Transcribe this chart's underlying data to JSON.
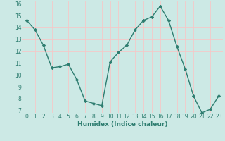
{
  "x": [
    0,
    1,
    2,
    3,
    4,
    5,
    6,
    7,
    8,
    9,
    10,
    11,
    12,
    13,
    14,
    15,
    16,
    17,
    18,
    19,
    20,
    21,
    22,
    23
  ],
  "y": [
    14.6,
    13.8,
    12.5,
    10.6,
    10.7,
    10.9,
    9.6,
    7.8,
    7.6,
    7.4,
    11.1,
    11.9,
    12.5,
    13.8,
    14.6,
    14.9,
    15.8,
    14.6,
    12.4,
    10.5,
    8.2,
    6.8,
    7.1,
    8.2
  ],
  "line_color": "#2e7d70",
  "marker": "D",
  "markersize": 2.2,
  "linewidth": 1.0,
  "bg_color": "#cce9e5",
  "grid_color": "#f5c8c8",
  "xlabel": "Humidex (Indice chaleur)",
  "xlabel_color": "#2e7d70",
  "xlabel_fontsize": 6.5,
  "tick_color": "#2e7d70",
  "tick_fontsize": 5.5,
  "ylim": [
    6.8,
    16.2
  ],
  "xlim": [
    -0.5,
    23.5
  ],
  "yticks": [
    7,
    8,
    9,
    10,
    11,
    12,
    13,
    14,
    15,
    16
  ],
  "xticks": [
    0,
    1,
    2,
    3,
    4,
    5,
    6,
    7,
    8,
    9,
    10,
    11,
    12,
    13,
    14,
    15,
    16,
    17,
    18,
    19,
    20,
    21,
    22,
    23
  ]
}
